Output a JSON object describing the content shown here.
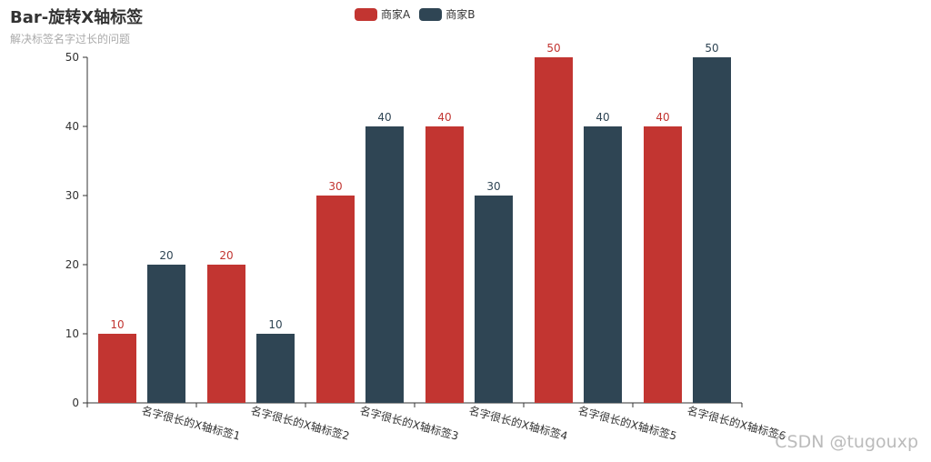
{
  "chart_data": {
    "type": "bar",
    "title": "Bar-旋转X轴标签",
    "subtitle": "解决标签名字过长的问题",
    "categories": [
      "名字很长的X轴标签1",
      "名字很长的X轴标签2",
      "名字很长的X轴标签3",
      "名字很长的X轴标签4",
      "名字很长的X轴标签5",
      "名字很长的X轴标签6"
    ],
    "series": [
      {
        "name": "商家A",
        "values": [
          10,
          20,
          30,
          40,
          50,
          40
        ],
        "color": "#c23531"
      },
      {
        "name": "商家B",
        "values": [
          20,
          10,
          40,
          30,
          40,
          50
        ],
        "color": "#2f4554"
      }
    ],
    "ylim": [
      0,
      50
    ],
    "yticks": [
      0,
      10,
      20,
      30,
      40,
      50
    ],
    "grid": false,
    "legend_position": "top-center",
    "data_labels": true,
    "xlabel_rotation": "rotated"
  },
  "watermark": "CSDN @tugouxp"
}
